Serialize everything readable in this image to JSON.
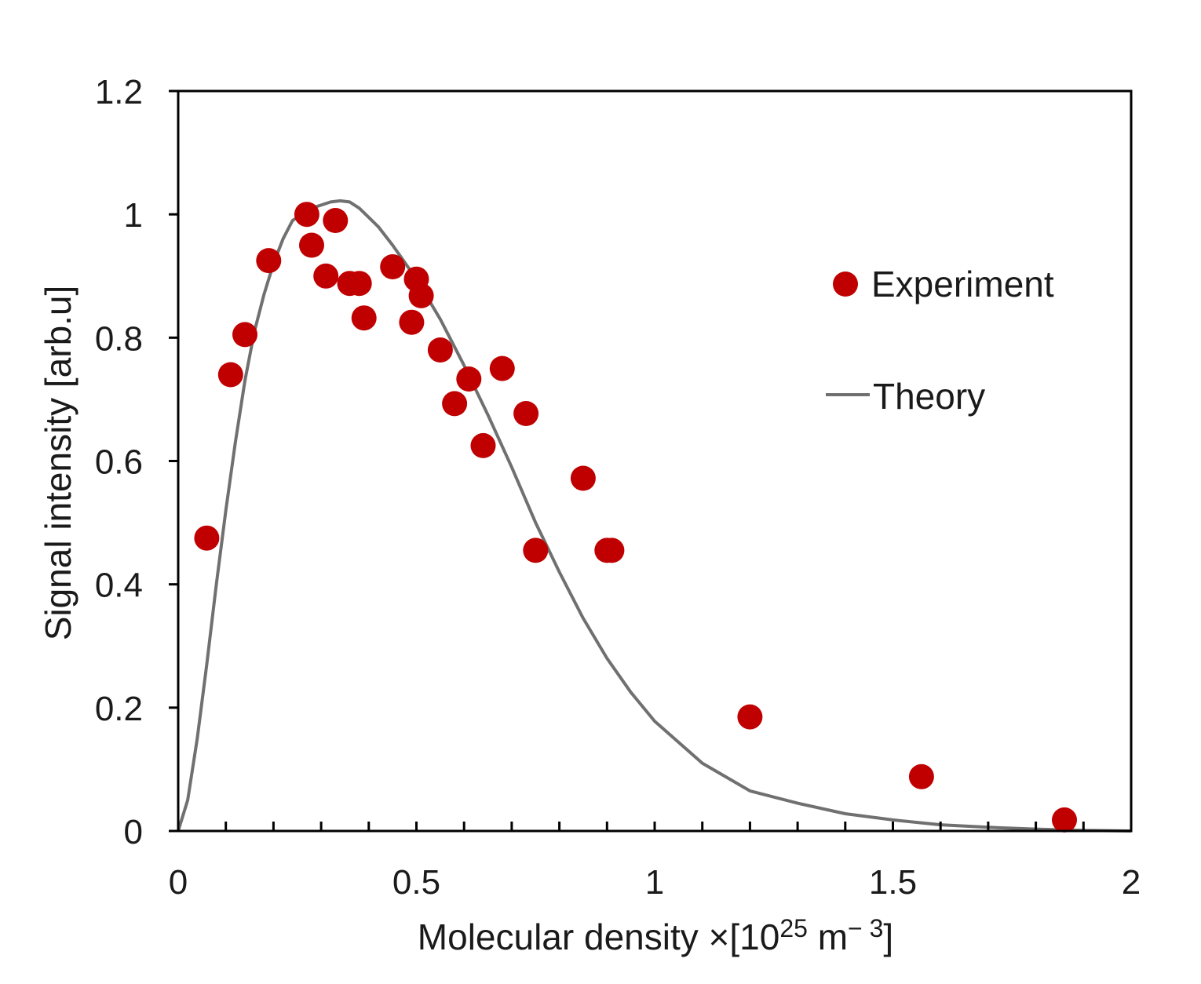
{
  "chart_data": {
    "type": "scatter",
    "title": "",
    "xlabel": {
      "prefix": "Molecular density ×[10",
      "exp1": "25",
      "mid": " m",
      "exp2": "− 3",
      "suffix": "]"
    },
    "ylabel": "Signal intensity [arb.u]",
    "xlim": [
      0,
      2
    ],
    "ylim": [
      0,
      1.2
    ],
    "x_ticks": [
      0,
      0.5,
      1,
      1.5,
      2
    ],
    "x_tick_labels": [
      "0",
      "0.5",
      "1",
      "1.5",
      "2"
    ],
    "x_minor_step": 0.1,
    "y_ticks": [
      0,
      0.2,
      0.4,
      0.6,
      0.8,
      1.0,
      1.2
    ],
    "y_tick_labels": [
      "0",
      "0.2",
      "0.4",
      "0.6",
      "0.8",
      "1",
      "1.2"
    ],
    "grid": false,
    "legend_position": "right",
    "series": [
      {
        "name": "Experiment",
        "kind": "scatter",
        "color": "#c00000",
        "points": [
          [
            0.06,
            0.475
          ],
          [
            0.11,
            0.74
          ],
          [
            0.14,
            0.805
          ],
          [
            0.19,
            0.925
          ],
          [
            0.27,
            1.0
          ],
          [
            0.28,
            0.95
          ],
          [
            0.31,
            0.9
          ],
          [
            0.33,
            0.99
          ],
          [
            0.36,
            0.888
          ],
          [
            0.38,
            0.888
          ],
          [
            0.39,
            0.832
          ],
          [
            0.45,
            0.915
          ],
          [
            0.49,
            0.825
          ],
          [
            0.5,
            0.895
          ],
          [
            0.51,
            0.868
          ],
          [
            0.55,
            0.78
          ],
          [
            0.58,
            0.693
          ],
          [
            0.61,
            0.733
          ],
          [
            0.64,
            0.625
          ],
          [
            0.68,
            0.75
          ],
          [
            0.73,
            0.677
          ],
          [
            0.75,
            0.455
          ],
          [
            0.85,
            0.572
          ],
          [
            0.9,
            0.455
          ],
          [
            0.91,
            0.455
          ],
          [
            1.2,
            0.185
          ],
          [
            1.56,
            0.088
          ],
          [
            1.86,
            0.018
          ]
        ]
      },
      {
        "name": "Theory",
        "kind": "line",
        "color": "#707070",
        "points": [
          [
            0,
            0
          ],
          [
            0.02,
            0.05
          ],
          [
            0.04,
            0.15
          ],
          [
            0.06,
            0.27
          ],
          [
            0.08,
            0.4
          ],
          [
            0.1,
            0.52
          ],
          [
            0.12,
            0.63
          ],
          [
            0.14,
            0.73
          ],
          [
            0.16,
            0.81
          ],
          [
            0.18,
            0.87
          ],
          [
            0.2,
            0.92
          ],
          [
            0.22,
            0.96
          ],
          [
            0.24,
            0.99
          ],
          [
            0.26,
            1.0
          ],
          [
            0.28,
            1.01
          ],
          [
            0.3,
            1.015
          ],
          [
            0.32,
            1.02
          ],
          [
            0.34,
            1.022
          ],
          [
            0.36,
            1.02
          ],
          [
            0.38,
            1.01
          ],
          [
            0.4,
            0.995
          ],
          [
            0.42,
            0.98
          ],
          [
            0.45,
            0.95
          ],
          [
            0.5,
            0.895
          ],
          [
            0.55,
            0.83
          ],
          [
            0.6,
            0.755
          ],
          [
            0.65,
            0.675
          ],
          [
            0.7,
            0.59
          ],
          [
            0.75,
            0.5
          ],
          [
            0.8,
            0.42
          ],
          [
            0.85,
            0.345
          ],
          [
            0.9,
            0.28
          ],
          [
            0.95,
            0.225
          ],
          [
            1.0,
            0.178
          ],
          [
            1.1,
            0.11
          ],
          [
            1.2,
            0.065
          ],
          [
            1.3,
            0.045
          ],
          [
            1.4,
            0.028
          ],
          [
            1.5,
            0.018
          ],
          [
            1.6,
            0.01
          ],
          [
            1.7,
            0.006
          ],
          [
            1.8,
            0.003
          ],
          [
            1.9,
            0.001
          ],
          [
            2.0,
            0.0
          ]
        ]
      }
    ]
  }
}
